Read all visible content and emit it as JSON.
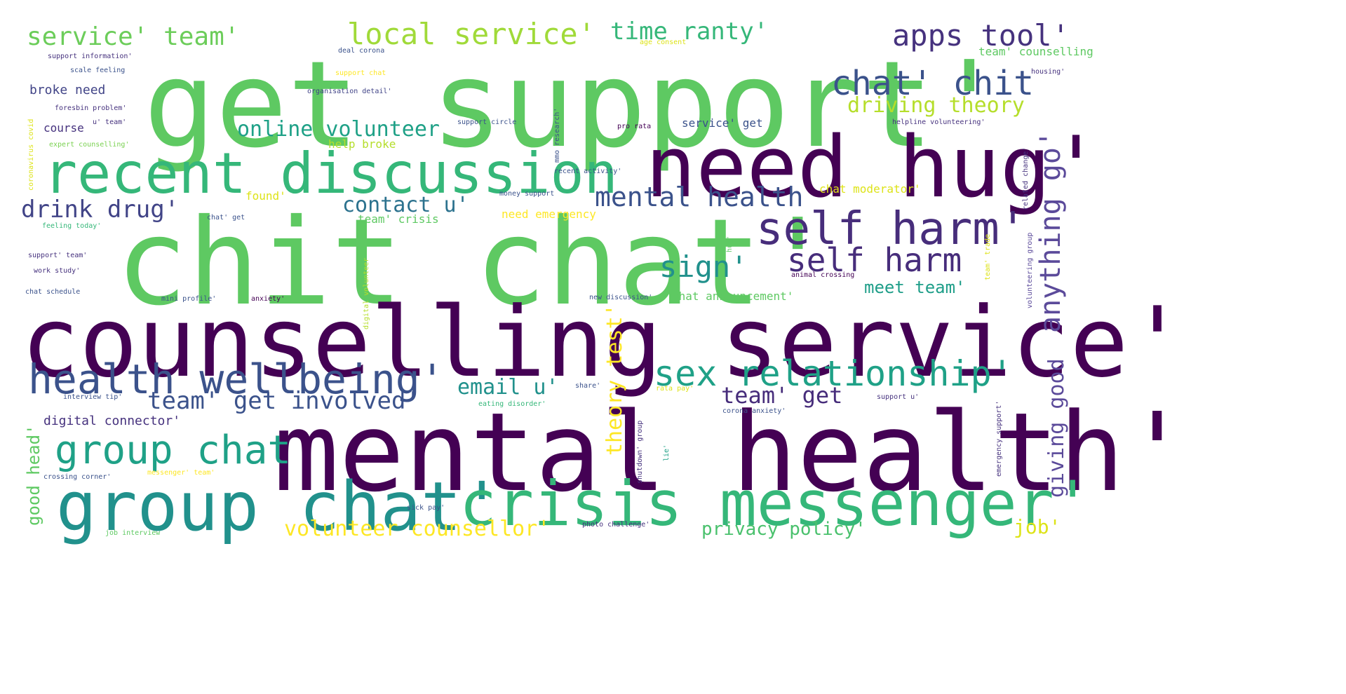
{
  "palette": {
    "dark_purple": "#440154",
    "indigo": "#3b528b",
    "teal": "#21918c",
    "green": "#5ec962",
    "yellow": "#fde725",
    "lavender": "#8e7cc3"
  },
  "words": [
    {
      "text": "get support'",
      "color": "#5ec962"
    },
    {
      "text": "chit chat'",
      "color": "#5ec962"
    },
    {
      "text": "counselling service'",
      "color": "#440154"
    },
    {
      "text": "mental health'",
      "color": "#440154"
    },
    {
      "text": "need hug'",
      "color": "#440154"
    },
    {
      "text": "recent discussion",
      "color": "#35b779"
    },
    {
      "text": "group chat'",
      "color": "#21918c"
    },
    {
      "text": "crisis messenger'",
      "color": "#35b779"
    },
    {
      "text": "health wellbeing'",
      "color": "#3b528b"
    },
    {
      "text": "self harm'",
      "color": "#472d7b"
    },
    {
      "text": "sex relationship'",
      "color": "#1fa187"
    },
    {
      "text": "group chat",
      "color": "#1fa187"
    },
    {
      "text": "self harm",
      "color": "#472d7b"
    },
    {
      "text": "mental health",
      "color": "#3b528b"
    },
    {
      "text": "chat' chit",
      "color": "#3b528b"
    },
    {
      "text": "apps tool'",
      "color": "#46327e"
    },
    {
      "text": "anything go'",
      "color": "#5b4a9a"
    },
    {
      "text": "service' team'",
      "color": "#6ccd5a"
    },
    {
      "text": "local service'",
      "color": "#a0da39"
    },
    {
      "text": "time ranty'",
      "color": "#35b779"
    },
    {
      "text": "online volunteer",
      "color": "#1fa187"
    },
    {
      "text": "driving theory",
      "color": "#b5de2b"
    },
    {
      "text": "drink drug'",
      "color": "#414487"
    },
    {
      "text": "contact u'",
      "color": "#2c728e"
    },
    {
      "text": "sign'",
      "color": "#21918c"
    },
    {
      "text": "team' get involved'",
      "color": "#3b528b"
    },
    {
      "text": "email u'",
      "color": "#21918c"
    },
    {
      "text": "team' get",
      "color": "#472d7b"
    },
    {
      "text": "meet team'",
      "color": "#1f9e89"
    },
    {
      "text": "volunteer counsellor'",
      "color": "#fde725"
    },
    {
      "text": "privacy policy'",
      "color": "#4ac16d"
    },
    {
      "text": "job'",
      "color": "#dde318"
    },
    {
      "text": "theory test'",
      "color": "#fde725"
    },
    {
      "text": "giving good",
      "color": "#5b4a9a"
    },
    {
      "text": "good head'",
      "color": "#5ec962"
    },
    {
      "text": "digital connector'",
      "color": "#46327e"
    },
    {
      "text": "broke need",
      "color": "#414487"
    },
    {
      "text": "course",
      "color": "#46327e"
    },
    {
      "text": "help broke",
      "color": "#b5de2b"
    },
    {
      "text": "service' get",
      "color": "#3b528b"
    },
    {
      "text": "chat moderator'",
      "color": "#dde318"
    },
    {
      "text": "need emergency",
      "color": "#fde725"
    },
    {
      "text": "team' crisis",
      "color": "#5ec962"
    },
    {
      "text": "found'",
      "color": "#dde318"
    },
    {
      "text": "chat announcement'",
      "color": "#5ec962"
    },
    {
      "text": "team' counselling",
      "color": "#5ec962"
    },
    {
      "text": "support information'",
      "color": "#46327e"
    },
    {
      "text": "scale feeling",
      "color": "#3b528b"
    },
    {
      "text": "deal corona",
      "color": "#3b528b"
    },
    {
      "text": "age consent",
      "color": "#dde318"
    },
    {
      "text": "support chat",
      "color": "#fde725"
    },
    {
      "text": "organisation detail'",
      "color": "#414487"
    },
    {
      "text": "housing'",
      "color": "#46327e"
    },
    {
      "text": "foresbin problem'",
      "color": "#46327e"
    },
    {
      "text": "u' team'",
      "color": "#46327e"
    },
    {
      "text": "support circle",
      "color": "#3b528b"
    },
    {
      "text": "pro rata",
      "color": "#440154"
    },
    {
      "text": "helpline volunteering'",
      "color": "#46327e"
    },
    {
      "text": "expert counselling'",
      "color": "#7ad151"
    },
    {
      "text": "money support",
      "color": "#3b528b"
    },
    {
      "text": "recent activity'",
      "color": "#3b528b"
    },
    {
      "text": "feeling today'",
      "color": "#35b779"
    },
    {
      "text": "chat' get",
      "color": "#3b528b"
    },
    {
      "text": "support' team'",
      "color": "#46327e"
    },
    {
      "text": "work study'",
      "color": "#46327e"
    },
    {
      "text": "chat schedule",
      "color": "#3b528b"
    },
    {
      "text": "mini profile'",
      "color": "#3b528b"
    },
    {
      "text": "anxiety'",
      "color": "#440154"
    },
    {
      "text": "new discussion'",
      "color": "#3b528b"
    },
    {
      "text": "animal crossing",
      "color": "#440154"
    },
    {
      "text": "interview tip'",
      "color": "#3b528b"
    },
    {
      "text": "eating disorder'",
      "color": "#35b779"
    },
    {
      "text": "rata pay'",
      "color": "#dde318"
    },
    {
      "text": "corona anxiety'",
      "color": "#3b528b"
    },
    {
      "text": "support u'",
      "color": "#46327e"
    },
    {
      "text": "crossing corner'",
      "color": "#3b528b"
    },
    {
      "text": "messenger' team'",
      "color": "#fde725"
    },
    {
      "text": "sick pay'",
      "color": "#3b528b"
    },
    {
      "text": "photo challenge'",
      "color": "#46327e"
    },
    {
      "text": "job interview",
      "color": "#5ec962"
    },
    {
      "text": "share'",
      "color": "#3b528b"
    },
    {
      "text": "emergency support'",
      "color": "#46327e"
    },
    {
      "text": "coronavirus covid",
      "color": "#dde318"
    },
    {
      "text": "mmo research'",
      "color": "#3b528b"
    },
    {
      "text": "digital volunteer",
      "color": "#b5de2b"
    },
    {
      "text": "shutdown' group",
      "color": "#46327e"
    },
    {
      "text": "lie'",
      "color": "#1fa187"
    },
    {
      "text": "volunteering group",
      "color": "#5b4a9a"
    },
    {
      "text": "related change'",
      "color": "#46327e"
    },
    {
      "text": "team' trade",
      "color": "#dde318"
    },
    {
      "text": "hug'",
      "color": "#5ec962"
    }
  ]
}
